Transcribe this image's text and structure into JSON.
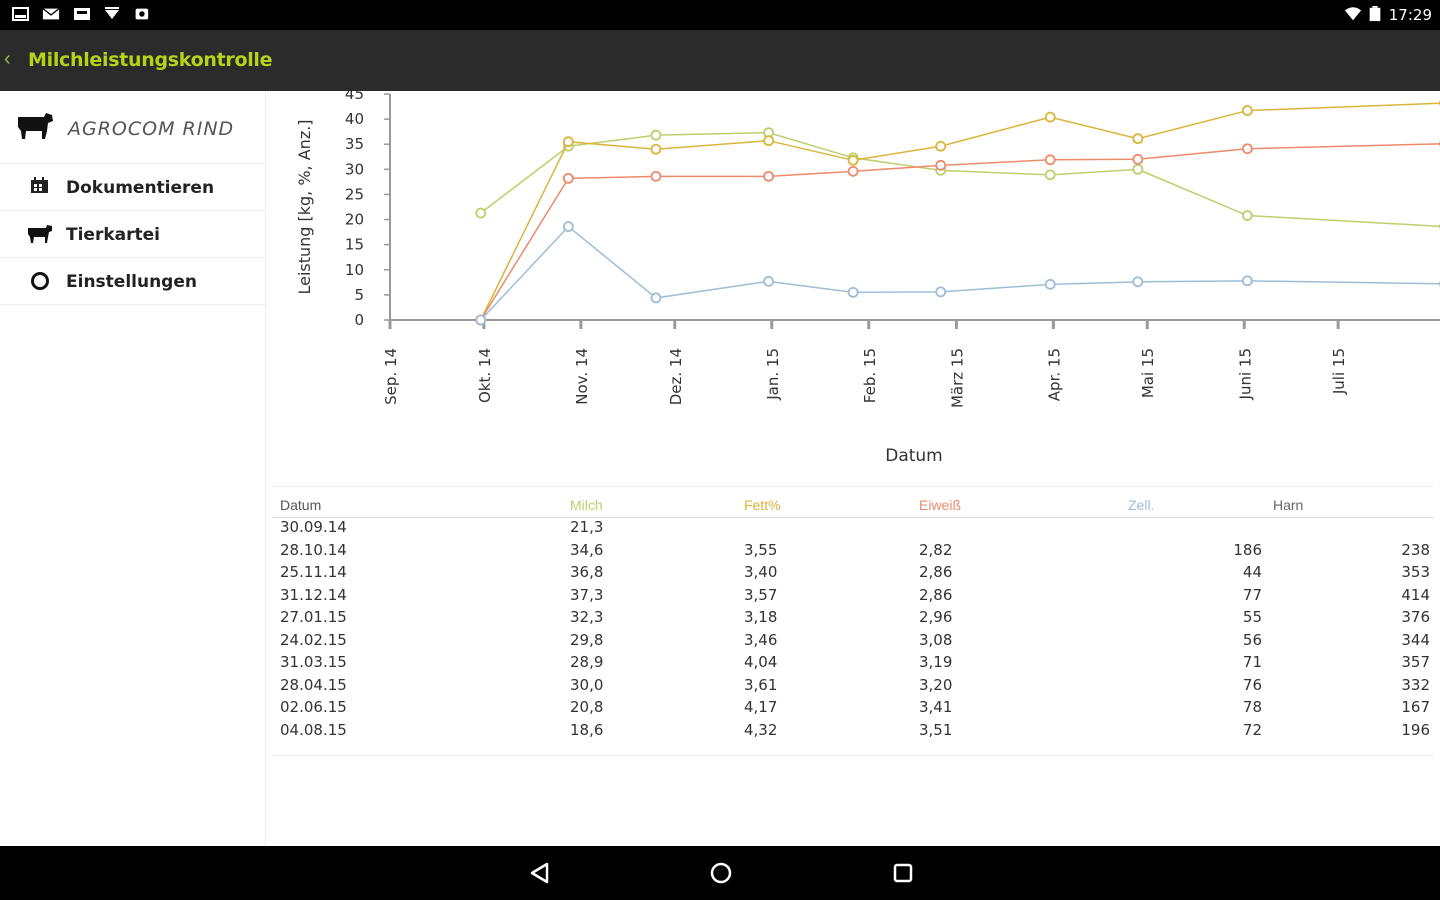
{
  "status": {
    "time": "17:29"
  },
  "app": {
    "title": "Milchleistungskontrolle",
    "back_glyph": "‹"
  },
  "sidebar": {
    "brand": "AGROCOM RIND",
    "items": [
      {
        "label": "Dokumentieren",
        "icon": "calendar-icon"
      },
      {
        "label": "Tierkartei",
        "icon": "cow-icon"
      },
      {
        "label": "Einstellungen",
        "icon": "circle-icon"
      }
    ]
  },
  "colors": {
    "milch": "#bccf6b",
    "fett": "#d9b53a",
    "eiweiss": "#ec8a6a",
    "zell": "#9dbdd6",
    "title": "#b5d317"
  },
  "chart_data": {
    "type": "line",
    "ylabel": "Leistung [kg, %, Anz.]",
    "xlabel": "Datum",
    "ylim": [
      0,
      45
    ],
    "yticks": [
      0,
      5,
      10,
      15,
      20,
      25,
      30,
      35,
      40,
      45
    ],
    "xticks": [
      "Sep. 14",
      "Okt. 14",
      "Nov. 14",
      "Dez. 14",
      "Jan. 15",
      "Feb. 15",
      "März 15",
      "Apr. 15",
      "Mai 15",
      "Juni 15",
      "Juli 15"
    ],
    "x": [
      "2014-09-30",
      "2014-10-28",
      "2014-11-25",
      "2014-12-31",
      "2015-01-27",
      "2015-02-24",
      "2015-03-31",
      "2015-04-28",
      "2015-06-02",
      "2015-08-04"
    ],
    "series": [
      {
        "key": "milch",
        "values": [
          21.3,
          34.6,
          36.8,
          37.3,
          32.3,
          29.8,
          28.9,
          30.0,
          20.8,
          18.6
        ]
      },
      {
        "key": "fett",
        "values": [
          0,
          35.5,
          34.0,
          35.7,
          31.8,
          34.6,
          40.4,
          36.1,
          41.7,
          43.2
        ]
      },
      {
        "key": "eiweiss",
        "values": [
          0,
          28.2,
          28.6,
          28.6,
          29.6,
          30.8,
          31.9,
          32.0,
          34.1,
          35.1
        ]
      },
      {
        "key": "zell",
        "values": [
          0,
          18.6,
          4.4,
          7.7,
          5.5,
          5.6,
          7.1,
          7.6,
          7.8,
          7.2
        ]
      }
    ],
    "grid": false,
    "legend": "none"
  },
  "table": {
    "headers": [
      "Datum",
      "Milch",
      "Fett%",
      "Eiweiß",
      "Zell.",
      "Harn"
    ],
    "rows": [
      [
        "30.09.14",
        "21,3",
        "",
        "",
        "",
        ""
      ],
      [
        "28.10.14",
        "34,6",
        "3,55",
        "2,82",
        "186",
        "238"
      ],
      [
        "25.11.14",
        "36,8",
        "3,40",
        "2,86",
        "44",
        "353"
      ],
      [
        "31.12.14",
        "37,3",
        "3,57",
        "2,86",
        "77",
        "414"
      ],
      [
        "27.01.15",
        "32,3",
        "3,18",
        "2,96",
        "55",
        "376"
      ],
      [
        "24.02.15",
        "29,8",
        "3,46",
        "3,08",
        "56",
        "344"
      ],
      [
        "31.03.15",
        "28,9",
        "4,04",
        "3,19",
        "71",
        "357"
      ],
      [
        "28.04.15",
        "30,0",
        "3,61",
        "3,20",
        "76",
        "332"
      ],
      [
        "02.06.15",
        "20,8",
        "4,17",
        "3,41",
        "78",
        "167"
      ],
      [
        "04.08.15",
        "18,6",
        "4,32",
        "3,51",
        "72",
        "196"
      ]
    ]
  }
}
